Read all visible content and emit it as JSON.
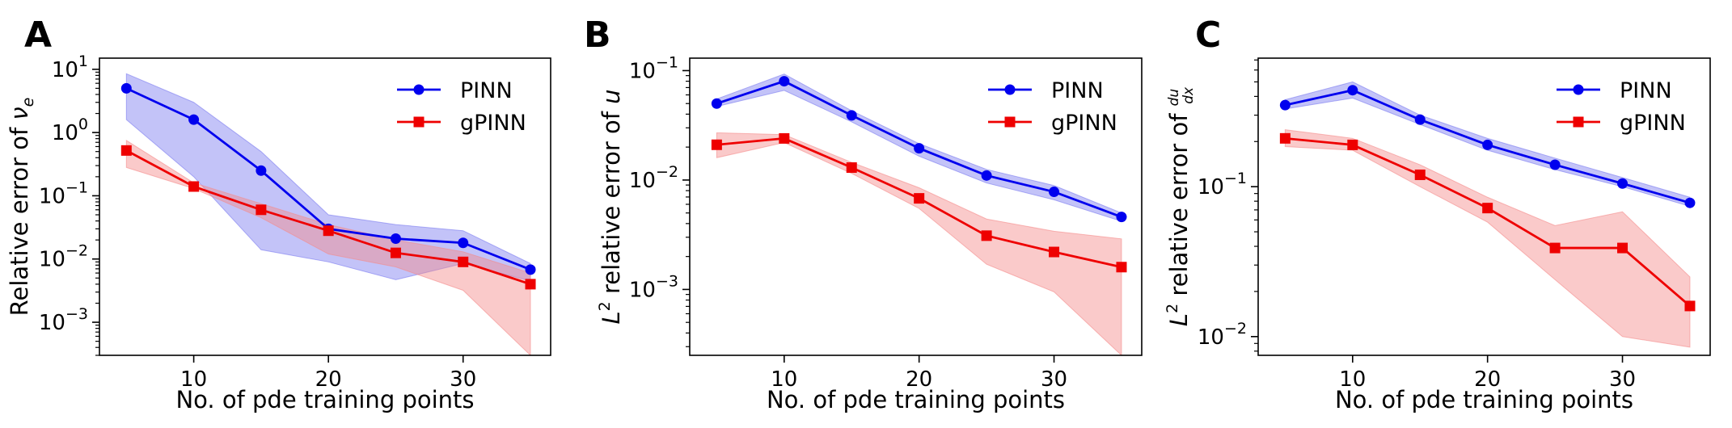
{
  "figure": {
    "panels": [
      "A",
      "B",
      "C"
    ],
    "xlabel": "No. of pde training points"
  },
  "colors": {
    "PINN": "#0000ee",
    "gPINN": "#ee0000",
    "PINN_band": "#7b7bf0",
    "gPINN_band": "#f58a8a"
  },
  "chart_data": [
    {
      "type": "line",
      "panel": "A",
      "ylabel_text": "Relative error of ",
      "ylabel_math": "ν",
      "ylabel_sub": "e",
      "yscale": "log",
      "xlim": [
        3,
        36.5
      ],
      "ylim": [
        0.0003,
        15
      ],
      "x": [
        5,
        10,
        15,
        20,
        25,
        30,
        35
      ],
      "xticks": [
        10,
        20,
        30
      ],
      "yticks": [
        {
          "base": "10",
          "exp": "1",
          "value": 10
        },
        {
          "base": "10",
          "exp": "0",
          "value": 1
        },
        {
          "base": "10",
          "exp": "−1",
          "value": 0.1
        },
        {
          "base": "10",
          "exp": "−2",
          "value": 0.01
        },
        {
          "base": "10",
          "exp": "−3",
          "value": 0.001
        }
      ],
      "legend_position": "top-right",
      "series": [
        {
          "name": "PINN",
          "marker": "circle",
          "values": [
            5.0,
            1.6,
            0.25,
            0.03,
            0.021,
            0.018,
            0.0068
          ],
          "lower": [
            1.6,
            0.2,
            0.014,
            0.009,
            0.0047,
            0.0085,
            0.0045
          ],
          "upper": [
            8.5,
            3.0,
            0.5,
            0.05,
            0.035,
            0.028,
            0.0085
          ]
        },
        {
          "name": "gPINN",
          "marker": "square",
          "values": [
            0.52,
            0.14,
            0.06,
            0.028,
            0.0125,
            0.009,
            0.004
          ],
          "lower": [
            0.28,
            0.13,
            0.045,
            0.012,
            0.0075,
            0.0032,
            0.0003
          ],
          "upper": [
            0.75,
            0.16,
            0.075,
            0.035,
            0.02,
            0.013,
            0.006
          ]
        }
      ]
    },
    {
      "type": "line",
      "panel": "B",
      "ylabel_pre": "L",
      "ylabel_sup": "2",
      "ylabel_text": " relative error of ",
      "ylabel_math": "u",
      "yscale": "log",
      "xlim": [
        3,
        36.5
      ],
      "ylim": [
        0.00025,
        0.13
      ],
      "x": [
        5,
        10,
        15,
        20,
        25,
        30,
        35
      ],
      "xticks": [
        10,
        20,
        30
      ],
      "yticks": [
        {
          "base": "10",
          "exp": "−1",
          "value": 0.1
        },
        {
          "base": "10",
          "exp": "−2",
          "value": 0.01
        },
        {
          "base": "10",
          "exp": "−3",
          "value": 0.001
        }
      ],
      "legend_position": "top-right",
      "series": [
        {
          "name": "PINN",
          "marker": "circle",
          "values": [
            0.05,
            0.08,
            0.039,
            0.0195,
            0.011,
            0.0078,
            0.0046
          ],
          "lower": [
            0.047,
            0.066,
            0.034,
            0.0165,
            0.0094,
            0.0066,
            0.0042
          ],
          "upper": [
            0.055,
            0.093,
            0.043,
            0.0215,
            0.0125,
            0.0089,
            0.005
          ]
        },
        {
          "name": "gPINN",
          "marker": "square",
          "values": [
            0.021,
            0.024,
            0.013,
            0.0068,
            0.0031,
            0.0022,
            0.0016
          ],
          "lower": [
            0.016,
            0.022,
            0.0115,
            0.0055,
            0.0017,
            0.00095,
            0.00025
          ],
          "upper": [
            0.027,
            0.026,
            0.0145,
            0.0085,
            0.0044,
            0.0034,
            0.0029
          ]
        }
      ]
    },
    {
      "type": "line",
      "panel": "C",
      "ylabel_pre": "L",
      "ylabel_sup": "2",
      "ylabel_text": " relative error of ",
      "ylabel_frac_num": "du",
      "ylabel_frac_den": "dx",
      "yscale": "log",
      "xlim": [
        3,
        36.5
      ],
      "ylim": [
        0.0075,
        0.72
      ],
      "x": [
        5,
        10,
        15,
        20,
        25,
        30,
        35
      ],
      "xticks": [
        10,
        20,
        30
      ],
      "yticks": [
        {
          "base": "10",
          "exp": "−1",
          "value": 0.1
        },
        {
          "base": "10",
          "exp": "−2",
          "value": 0.01
        }
      ],
      "legend_position": "top-right",
      "series": [
        {
          "name": "PINN",
          "marker": "circle",
          "values": [
            0.35,
            0.44,
            0.28,
            0.19,
            0.14,
            0.105,
            0.078
          ],
          "lower": [
            0.33,
            0.39,
            0.26,
            0.175,
            0.13,
            0.1,
            0.074
          ],
          "upper": [
            0.38,
            0.5,
            0.3,
            0.21,
            0.155,
            0.115,
            0.085
          ]
        },
        {
          "name": "gPINN",
          "marker": "square",
          "values": [
            0.21,
            0.19,
            0.12,
            0.072,
            0.039,
            0.039,
            0.016
          ],
          "lower": [
            0.185,
            0.175,
            0.1,
            0.058,
            0.024,
            0.01,
            0.0085
          ],
          "upper": [
            0.24,
            0.21,
            0.14,
            0.085,
            0.055,
            0.068,
            0.025
          ]
        }
      ]
    }
  ]
}
